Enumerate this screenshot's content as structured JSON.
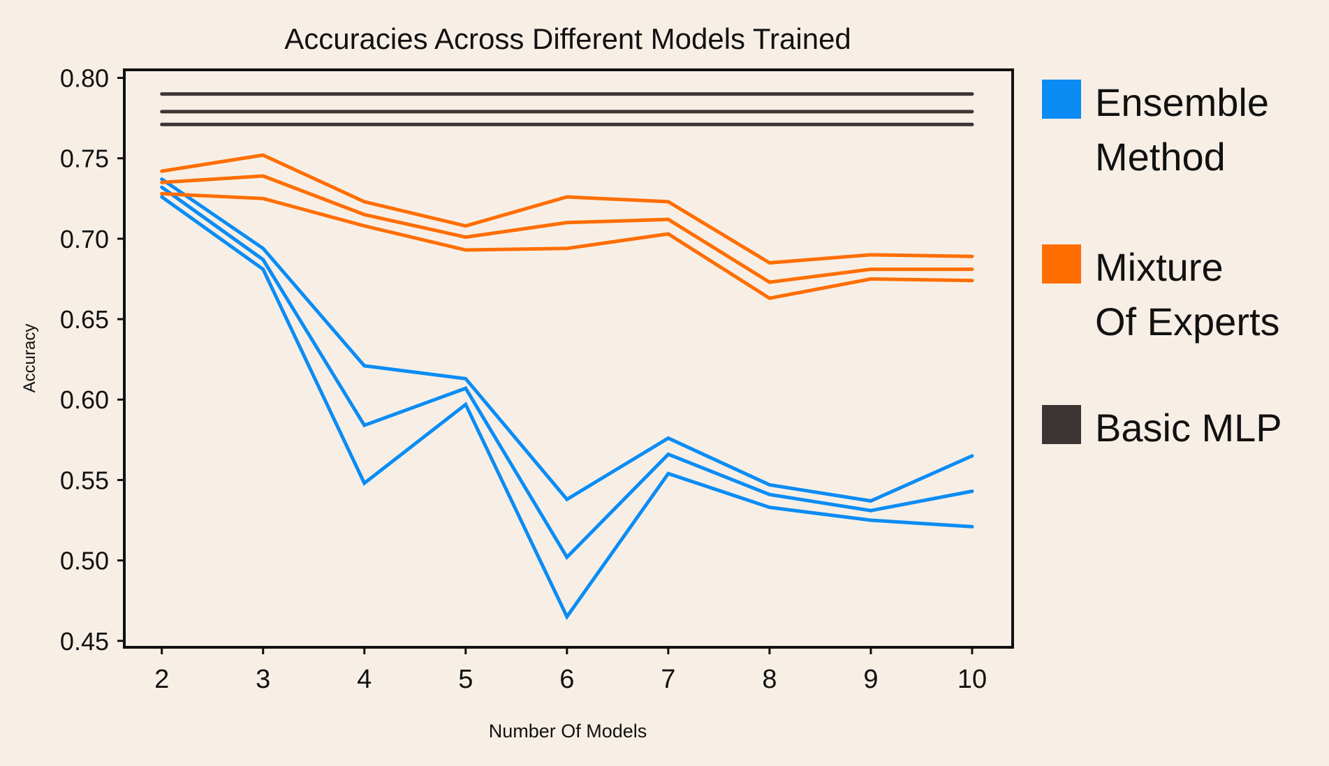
{
  "chart_data": {
    "type": "line",
    "title": "Accuracies Across Different Models Trained",
    "xlabel": "Number Of Models",
    "ylabel": "Accuracy",
    "x": [
      2,
      3,
      4,
      5,
      6,
      7,
      8,
      9,
      10
    ],
    "x_tick_labels": [
      "2",
      "3",
      "4",
      "5",
      "6",
      "7",
      "8",
      "9",
      "10"
    ],
    "y_tick_values": [
      0.45,
      0.5,
      0.55,
      0.6,
      0.65,
      0.7,
      0.75,
      0.8
    ],
    "y_tick_labels": [
      "0.45",
      "0.50",
      "0.55",
      "0.60",
      "0.65",
      "0.70",
      "0.75",
      "0.80"
    ],
    "xlim": [
      1.63,
      10.4
    ],
    "ylim": [
      0.446,
      0.805
    ],
    "grid": false,
    "legend_position": "right",
    "series": [
      {
        "group": "ensemble",
        "color": "#0b8cf4",
        "values": [
          0.737,
          0.694,
          0.621,
          0.613,
          0.538,
          0.576,
          0.547,
          0.537,
          0.565
        ]
      },
      {
        "group": "ensemble",
        "color": "#0b8cf4",
        "values": [
          0.732,
          0.687,
          0.584,
          0.607,
          0.502,
          0.566,
          0.541,
          0.531,
          0.543
        ]
      },
      {
        "group": "ensemble",
        "color": "#0b8cf4",
        "values": [
          0.726,
          0.681,
          0.548,
          0.597,
          0.465,
          0.554,
          0.533,
          0.525,
          0.521
        ]
      },
      {
        "group": "moe",
        "color": "#ff6e00",
        "values": [
          0.742,
          0.752,
          0.723,
          0.708,
          0.726,
          0.723,
          0.685,
          0.69,
          0.689
        ]
      },
      {
        "group": "moe",
        "color": "#ff6e00",
        "values": [
          0.735,
          0.739,
          0.715,
          0.701,
          0.71,
          0.712,
          0.673,
          0.681,
          0.681
        ]
      },
      {
        "group": "moe",
        "color": "#ff6e00",
        "values": [
          0.728,
          0.725,
          0.708,
          0.693,
          0.694,
          0.703,
          0.663,
          0.675,
          0.674
        ]
      },
      {
        "group": "mlp",
        "color": "#3d3534",
        "values": [
          0.79,
          0.79,
          0.79,
          0.79,
          0.79,
          0.79,
          0.79,
          0.79,
          0.79
        ]
      },
      {
        "group": "mlp",
        "color": "#3d3534",
        "values": [
          0.779,
          0.779,
          0.779,
          0.779,
          0.779,
          0.779,
          0.779,
          0.779,
          0.779
        ]
      },
      {
        "group": "mlp",
        "color": "#3d3534",
        "values": [
          0.771,
          0.771,
          0.771,
          0.771,
          0.771,
          0.771,
          0.771,
          0.771,
          0.771
        ]
      }
    ],
    "legend": [
      {
        "label": "Ensemble\nMethod",
        "color": "#0b8cf4"
      },
      {
        "label": "Mixture\nOf Experts",
        "color": "#ff6e00"
      },
      {
        "label": "Basic MLP",
        "color": "#3d3534"
      }
    ]
  }
}
